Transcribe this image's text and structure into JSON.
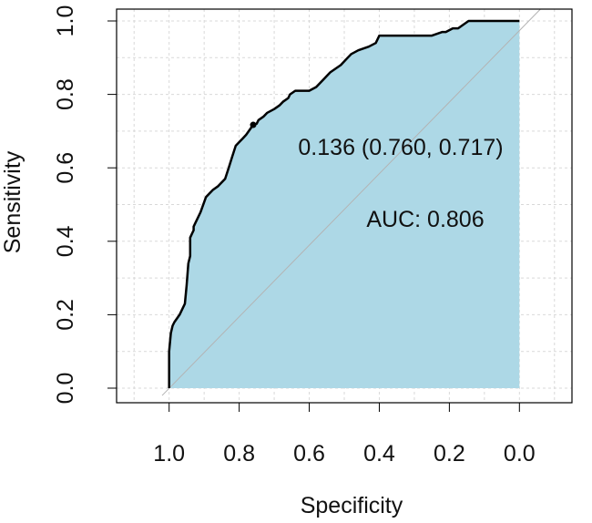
{
  "chart_data": {
    "type": "area",
    "xlabel": "Specificity",
    "ylabel": "Sensitivity",
    "xlim": [
      1.15,
      -0.15
    ],
    "ylim": [
      0.0,
      1.0
    ],
    "x_reversed": true,
    "grid": true,
    "x_ticks": [
      "1.0",
      "0.8",
      "0.6",
      "0.4",
      "0.2",
      "0.0"
    ],
    "y_ticks": [
      "0.0",
      "0.2",
      "0.4",
      "0.6",
      "0.8",
      "1.0"
    ],
    "fill_color": "#add8e6",
    "curve_color": "#000000",
    "diagonal_color": "#b3b3b3",
    "curve": {
      "specificity": [
        1.0,
        1.0,
        0.995,
        0.99,
        0.985,
        0.97,
        0.955,
        0.95,
        0.945,
        0.94,
        0.94,
        0.935,
        0.93,
        0.93,
        0.925,
        0.92,
        0.91,
        0.895,
        0.885,
        0.875,
        0.86,
        0.84,
        0.83,
        0.82,
        0.81,
        0.8,
        0.79,
        0.78,
        0.76,
        0.75,
        0.745,
        0.73,
        0.72,
        0.7,
        0.685,
        0.675,
        0.66,
        0.655,
        0.64,
        0.62,
        0.6,
        0.58,
        0.56,
        0.54,
        0.51,
        0.49,
        0.48,
        0.46,
        0.43,
        0.41,
        0.4,
        0.38,
        0.3,
        0.25,
        0.22,
        0.21,
        0.19,
        0.175,
        0.16,
        0.145,
        0.14,
        0.0
      ],
      "sensitivity": [
        0.0,
        0.1,
        0.15,
        0.17,
        0.18,
        0.2,
        0.23,
        0.28,
        0.34,
        0.36,
        0.41,
        0.42,
        0.43,
        0.44,
        0.45,
        0.46,
        0.48,
        0.52,
        0.53,
        0.54,
        0.55,
        0.57,
        0.6,
        0.63,
        0.66,
        0.67,
        0.68,
        0.69,
        0.717,
        0.72,
        0.73,
        0.74,
        0.75,
        0.76,
        0.77,
        0.78,
        0.79,
        0.8,
        0.81,
        0.81,
        0.81,
        0.82,
        0.84,
        0.86,
        0.88,
        0.9,
        0.91,
        0.92,
        0.93,
        0.94,
        0.96,
        0.96,
        0.96,
        0.96,
        0.97,
        0.97,
        0.98,
        0.98,
        0.99,
        1.0,
        1.0,
        1.0
      ]
    },
    "best_point": {
      "threshold": 0.136,
      "specificity": 0.76,
      "sensitivity": 0.717
    },
    "annotations": {
      "threshold_label": "0.136 (0.760, 0.717)",
      "auc_label": "AUC: 0.806",
      "auc_value": 0.806
    }
  }
}
